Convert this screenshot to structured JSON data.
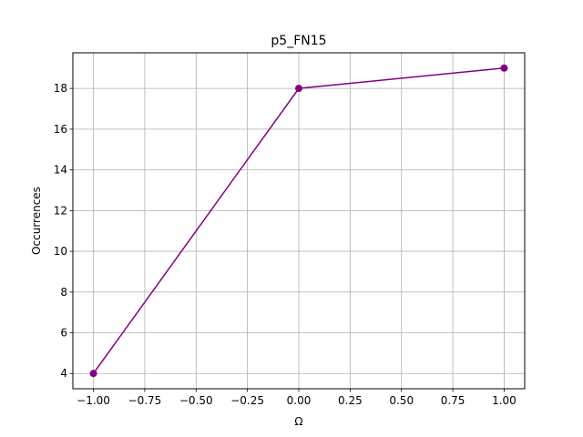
{
  "chart_data": {
    "type": "line",
    "title": "p5_FN15",
    "xlabel": "Ω",
    "ylabel": "Occurrences",
    "x": [
      -1.0,
      0.0,
      1.0
    ],
    "series": [
      {
        "values": [
          4,
          18,
          19
        ]
      }
    ],
    "xlim": [
      -1.1,
      1.1
    ],
    "ylim": [
      3.25,
      19.75
    ],
    "xticks": [
      -1.0,
      -0.75,
      -0.5,
      -0.25,
      0.0,
      0.25,
      0.5,
      0.75,
      1.0
    ],
    "xtick_labels": [
      "−1.00",
      "−0.75",
      "−0.50",
      "−0.25",
      "0.00",
      "0.25",
      "0.50",
      "0.75",
      "1.00"
    ],
    "yticks": [
      4,
      6,
      8,
      10,
      12,
      14,
      16,
      18
    ],
    "ytick_labels": [
      "4",
      "6",
      "8",
      "10",
      "12",
      "14",
      "16",
      "18"
    ],
    "grid": true,
    "line_color": "#800080",
    "marker": "circle"
  }
}
